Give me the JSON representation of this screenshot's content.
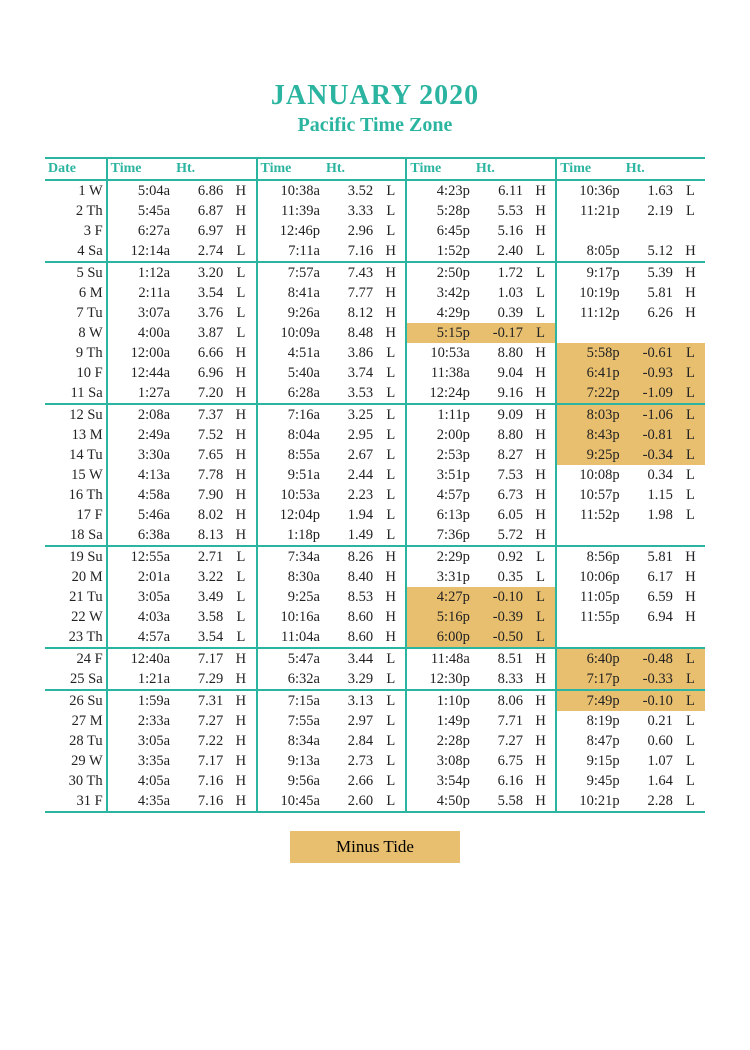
{
  "title": "JANUARY 2020",
  "subtitle": "Pacific Time Zone",
  "legend": "Minus Tide",
  "headers": {
    "date": "Date",
    "time": "Time",
    "ht": "Ht."
  },
  "colors": {
    "accent": "#2bb4a0",
    "minus_bg": "#e8bf6f",
    "text": "#222222",
    "background": "#ffffff"
  },
  "rows": [
    {
      "date": "1 W",
      "tides": [
        {
          "t": "5:04a",
          "h": "6.86",
          "x": "H"
        },
        {
          "t": "10:38a",
          "h": "3.52",
          "x": "L"
        },
        {
          "t": "4:23p",
          "h": "6.11",
          "x": "H"
        },
        {
          "t": "10:36p",
          "h": "1.63",
          "x": "L"
        }
      ]
    },
    {
      "date": "2 Th",
      "tides": [
        {
          "t": "5:45a",
          "h": "6.87",
          "x": "H"
        },
        {
          "t": "11:39a",
          "h": "3.33",
          "x": "L"
        },
        {
          "t": "5:28p",
          "h": "5.53",
          "x": "H"
        },
        {
          "t": "11:21p",
          "h": "2.19",
          "x": "L"
        }
      ]
    },
    {
      "date": "3 F",
      "tides": [
        {
          "t": "6:27a",
          "h": "6.97",
          "x": "H"
        },
        {
          "t": "12:46p",
          "h": "2.96",
          "x": "L"
        },
        {
          "t": "6:45p",
          "h": "5.16",
          "x": "H"
        },
        null
      ]
    },
    {
      "date": "4 Sa",
      "sep": true,
      "tides": [
        {
          "t": "12:14a",
          "h": "2.74",
          "x": "L"
        },
        {
          "t": "7:11a",
          "h": "7.16",
          "x": "H"
        },
        {
          "t": "1:52p",
          "h": "2.40",
          "x": "L"
        },
        {
          "t": "8:05p",
          "h": "5.12",
          "x": "H"
        }
      ]
    },
    {
      "date": "5 Su",
      "tides": [
        {
          "t": "1:12a",
          "h": "3.20",
          "x": "L"
        },
        {
          "t": "7:57a",
          "h": "7.43",
          "x": "H"
        },
        {
          "t": "2:50p",
          "h": "1.72",
          "x": "L"
        },
        {
          "t": "9:17p",
          "h": "5.39",
          "x": "H"
        }
      ]
    },
    {
      "date": "6 M",
      "tides": [
        {
          "t": "2:11a",
          "h": "3.54",
          "x": "L"
        },
        {
          "t": "8:41a",
          "h": "7.77",
          "x": "H"
        },
        {
          "t": "3:42p",
          "h": "1.03",
          "x": "L"
        },
        {
          "t": "10:19p",
          "h": "5.81",
          "x": "H"
        }
      ]
    },
    {
      "date": "7 Tu",
      "tides": [
        {
          "t": "3:07a",
          "h": "3.76",
          "x": "L"
        },
        {
          "t": "9:26a",
          "h": "8.12",
          "x": "H"
        },
        {
          "t": "4:29p",
          "h": "0.39",
          "x": "L"
        },
        {
          "t": "11:12p",
          "h": "6.26",
          "x": "H"
        }
      ]
    },
    {
      "date": "8 W",
      "tides": [
        {
          "t": "4:00a",
          "h": "3.87",
          "x": "L"
        },
        {
          "t": "10:09a",
          "h": "8.48",
          "x": "H"
        },
        {
          "t": "5:15p",
          "h": "-0.17",
          "x": "L",
          "m": true
        },
        null
      ]
    },
    {
      "date": "9 Th",
      "tides": [
        {
          "t": "12:00a",
          "h": "6.66",
          "x": "H"
        },
        {
          "t": "4:51a",
          "h": "3.86",
          "x": "L"
        },
        {
          "t": "10:53a",
          "h": "8.80",
          "x": "H"
        },
        {
          "t": "5:58p",
          "h": "-0.61",
          "x": "L",
          "m": true
        }
      ]
    },
    {
      "date": "10 F",
      "tides": [
        {
          "t": "12:44a",
          "h": "6.96",
          "x": "H"
        },
        {
          "t": "5:40a",
          "h": "3.74",
          "x": "L"
        },
        {
          "t": "11:38a",
          "h": "9.04",
          "x": "H"
        },
        {
          "t": "6:41p",
          "h": "-0.93",
          "x": "L",
          "m": true
        }
      ]
    },
    {
      "date": "11 Sa",
      "sep": true,
      "tides": [
        {
          "t": "1:27a",
          "h": "7.20",
          "x": "H"
        },
        {
          "t": "6:28a",
          "h": "3.53",
          "x": "L"
        },
        {
          "t": "12:24p",
          "h": "9.16",
          "x": "H"
        },
        {
          "t": "7:22p",
          "h": "-1.09",
          "x": "L",
          "m": true
        }
      ]
    },
    {
      "date": "12 Su",
      "tides": [
        {
          "t": "2:08a",
          "h": "7.37",
          "x": "H"
        },
        {
          "t": "7:16a",
          "h": "3.25",
          "x": "L"
        },
        {
          "t": "1:11p",
          "h": "9.09",
          "x": "H"
        },
        {
          "t": "8:03p",
          "h": "-1.06",
          "x": "L",
          "m": true
        }
      ]
    },
    {
      "date": "13 M",
      "tides": [
        {
          "t": "2:49a",
          "h": "7.52",
          "x": "H"
        },
        {
          "t": "8:04a",
          "h": "2.95",
          "x": "L"
        },
        {
          "t": "2:00p",
          "h": "8.80",
          "x": "H"
        },
        {
          "t": "8:43p",
          "h": "-0.81",
          "x": "L",
          "m": true
        }
      ]
    },
    {
      "date": "14 Tu",
      "tides": [
        {
          "t": "3:30a",
          "h": "7.65",
          "x": "H"
        },
        {
          "t": "8:55a",
          "h": "2.67",
          "x": "L"
        },
        {
          "t": "2:53p",
          "h": "8.27",
          "x": "H"
        },
        {
          "t": "9:25p",
          "h": "-0.34",
          "x": "L",
          "m": true
        }
      ]
    },
    {
      "date": "15 W",
      "tides": [
        {
          "t": "4:13a",
          "h": "7.78",
          "x": "H"
        },
        {
          "t": "9:51a",
          "h": "2.44",
          "x": "L"
        },
        {
          "t": "3:51p",
          "h": "7.53",
          "x": "H"
        },
        {
          "t": "10:08p",
          "h": "0.34",
          "x": "L"
        }
      ]
    },
    {
      "date": "16 Th",
      "tides": [
        {
          "t": "4:58a",
          "h": "7.90",
          "x": "H"
        },
        {
          "t": "10:53a",
          "h": "2.23",
          "x": "L"
        },
        {
          "t": "4:57p",
          "h": "6.73",
          "x": "H"
        },
        {
          "t": "10:57p",
          "h": "1.15",
          "x": "L"
        }
      ]
    },
    {
      "date": "17 F",
      "tides": [
        {
          "t": "5:46a",
          "h": "8.02",
          "x": "H"
        },
        {
          "t": "12:04p",
          "h": "1.94",
          "x": "L"
        },
        {
          "t": "6:13p",
          "h": "6.05",
          "x": "H"
        },
        {
          "t": "11:52p",
          "h": "1.98",
          "x": "L"
        }
      ]
    },
    {
      "date": "18 Sa",
      "sep": true,
      "tides": [
        {
          "t": "6:38a",
          "h": "8.13",
          "x": "H"
        },
        {
          "t": "1:18p",
          "h": "1.49",
          "x": "L"
        },
        {
          "t": "7:36p",
          "h": "5.72",
          "x": "H"
        },
        null
      ]
    },
    {
      "date": "19 Su",
      "tides": [
        {
          "t": "12:55a",
          "h": "2.71",
          "x": "L"
        },
        {
          "t": "7:34a",
          "h": "8.26",
          "x": "H"
        },
        {
          "t": "2:29p",
          "h": "0.92",
          "x": "L"
        },
        {
          "t": "8:56p",
          "h": "5.81",
          "x": "H"
        }
      ]
    },
    {
      "date": "20 M",
      "tides": [
        {
          "t": "2:01a",
          "h": "3.22",
          "x": "L"
        },
        {
          "t": "8:30a",
          "h": "8.40",
          "x": "H"
        },
        {
          "t": "3:31p",
          "h": "0.35",
          "x": "L"
        },
        {
          "t": "10:06p",
          "h": "6.17",
          "x": "H"
        }
      ]
    },
    {
      "date": "21 Tu",
      "tides": [
        {
          "t": "3:05a",
          "h": "3.49",
          "x": "L"
        },
        {
          "t": "9:25a",
          "h": "8.53",
          "x": "H"
        },
        {
          "t": "4:27p",
          "h": "-0.10",
          "x": "L",
          "m": true
        },
        {
          "t": "11:05p",
          "h": "6.59",
          "x": "H"
        }
      ]
    },
    {
      "date": "22 W",
      "tides": [
        {
          "t": "4:03a",
          "h": "3.58",
          "x": "L"
        },
        {
          "t": "10:16a",
          "h": "8.60",
          "x": "H"
        },
        {
          "t": "5:16p",
          "h": "-0.39",
          "x": "L",
          "m": true
        },
        {
          "t": "11:55p",
          "h": "6.94",
          "x": "H"
        }
      ]
    },
    {
      "date": "23 Th",
      "sep": true,
      "tides": [
        {
          "t": "4:57a",
          "h": "3.54",
          "x": "L"
        },
        {
          "t": "11:04a",
          "h": "8.60",
          "x": "H"
        },
        {
          "t": "6:00p",
          "h": "-0.50",
          "x": "L",
          "m": true
        },
        null
      ]
    },
    {
      "date": "24 F",
      "tides": [
        {
          "t": "12:40a",
          "h": "7.17",
          "x": "H"
        },
        {
          "t": "5:47a",
          "h": "3.44",
          "x": "L"
        },
        {
          "t": "11:48a",
          "h": "8.51",
          "x": "H"
        },
        {
          "t": "6:40p",
          "h": "-0.48",
          "x": "L",
          "m": true
        }
      ]
    },
    {
      "date": "25 Sa",
      "sep": true,
      "tides": [
        {
          "t": "1:21a",
          "h": "7.29",
          "x": "H"
        },
        {
          "t": "6:32a",
          "h": "3.29",
          "x": "L"
        },
        {
          "t": "12:30p",
          "h": "8.33",
          "x": "H"
        },
        {
          "t": "7:17p",
          "h": "-0.33",
          "x": "L",
          "m": true
        }
      ]
    },
    {
      "date": "26 Su",
      "tides": [
        {
          "t": "1:59a",
          "h": "7.31",
          "x": "H"
        },
        {
          "t": "7:15a",
          "h": "3.13",
          "x": "L"
        },
        {
          "t": "1:10p",
          "h": "8.06",
          "x": "H"
        },
        {
          "t": "7:49p",
          "h": "-0.10",
          "x": "L",
          "m": true
        }
      ]
    },
    {
      "date": "27 M",
      "tides": [
        {
          "t": "2:33a",
          "h": "7.27",
          "x": "H"
        },
        {
          "t": "7:55a",
          "h": "2.97",
          "x": "L"
        },
        {
          "t": "1:49p",
          "h": "7.71",
          "x": "H"
        },
        {
          "t": "8:19p",
          "h": "0.21",
          "x": "L"
        }
      ]
    },
    {
      "date": "28 Tu",
      "tides": [
        {
          "t": "3:05a",
          "h": "7.22",
          "x": "H"
        },
        {
          "t": "8:34a",
          "h": "2.84",
          "x": "L"
        },
        {
          "t": "2:28p",
          "h": "7.27",
          "x": "H"
        },
        {
          "t": "8:47p",
          "h": "0.60",
          "x": "L"
        }
      ]
    },
    {
      "date": "29 W",
      "tides": [
        {
          "t": "3:35a",
          "h": "7.17",
          "x": "H"
        },
        {
          "t": "9:13a",
          "h": "2.73",
          "x": "L"
        },
        {
          "t": "3:08p",
          "h": "6.75",
          "x": "H"
        },
        {
          "t": "9:15p",
          "h": "1.07",
          "x": "L"
        }
      ]
    },
    {
      "date": "30 Th",
      "tides": [
        {
          "t": "4:05a",
          "h": "7.16",
          "x": "H"
        },
        {
          "t": "9:56a",
          "h": "2.66",
          "x": "L"
        },
        {
          "t": "3:54p",
          "h": "6.16",
          "x": "H"
        },
        {
          "t": "9:45p",
          "h": "1.64",
          "x": "L"
        }
      ]
    },
    {
      "date": "31 F",
      "bot": true,
      "tides": [
        {
          "t": "4:35a",
          "h": "7.16",
          "x": "H"
        },
        {
          "t": "10:45a",
          "h": "2.60",
          "x": "L"
        },
        {
          "t": "4:50p",
          "h": "5.58",
          "x": "H"
        },
        {
          "t": "10:21p",
          "h": "2.28",
          "x": "L"
        }
      ]
    }
  ]
}
